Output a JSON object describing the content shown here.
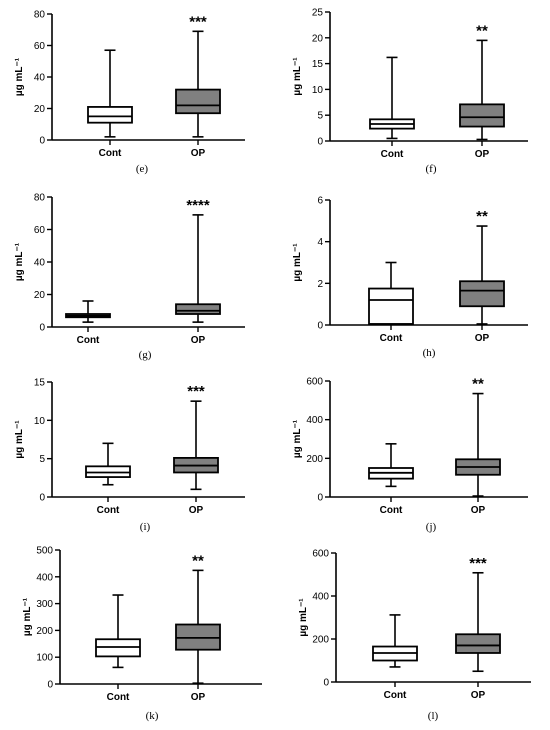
{
  "chart_data": [
    {
      "type": "box",
      "panel_label": "(e)",
      "categories": [
        "Cont",
        "OP"
      ],
      "ylabel": "µg mL⁻¹",
      "ylim": [
        0,
        80
      ],
      "yticks": [
        0,
        20,
        40,
        60,
        80
      ],
      "boxes": [
        {
          "category": "Cont",
          "min": 2,
          "q1": 11,
          "median": 15,
          "q3": 21,
          "max": 57,
          "fill": "#ffffff"
        },
        {
          "category": "OP",
          "min": 2,
          "q1": 17,
          "median": 22,
          "q3": 32,
          "max": 69,
          "fill": "#808080"
        }
      ],
      "significance": "***"
    },
    {
      "type": "box",
      "panel_label": "(f)",
      "categories": [
        "Cont",
        "OP"
      ],
      "ylabel": "µg mL⁻¹",
      "ylim": [
        0,
        25
      ],
      "yticks": [
        0,
        5,
        10,
        15,
        20,
        25
      ],
      "boxes": [
        {
          "category": "Cont",
          "min": 0.5,
          "q1": 2.4,
          "median": 3.3,
          "q3": 4.2,
          "max": 16.2,
          "fill": "#ffffff"
        },
        {
          "category": "OP",
          "min": 0.3,
          "q1": 2.8,
          "median": 4.6,
          "q3": 7.1,
          "max": 19.5,
          "fill": "#808080"
        }
      ],
      "significance": "**"
    },
    {
      "type": "box",
      "panel_label": "(g)",
      "categories": [
        "Cont",
        "OP"
      ],
      "ylabel": "µg mL⁻¹",
      "ylim": [
        0,
        80
      ],
      "yticks": [
        0,
        20,
        40,
        60,
        80
      ],
      "boxes": [
        {
          "category": "Cont",
          "min": 3,
          "q1": 6,
          "median": 7,
          "q3": 8,
          "max": 16,
          "fill": "#ffffff"
        },
        {
          "category": "OP",
          "min": 3,
          "q1": 8,
          "median": 10,
          "q3": 14,
          "max": 69,
          "fill": "#808080"
        }
      ],
      "significance": "****"
    },
    {
      "type": "box",
      "panel_label": "(h)",
      "categories": [
        "Cont",
        "OP"
      ],
      "ylabel": "µg mL⁻¹",
      "ylim": [
        0,
        6
      ],
      "yticks": [
        0,
        2,
        4,
        6
      ],
      "boxes": [
        {
          "category": "Cont",
          "min": 0.05,
          "q1": 0.05,
          "median": 1.2,
          "q3": 1.75,
          "max": 3.0,
          "fill": "#ffffff"
        },
        {
          "category": "OP",
          "min": 0.05,
          "q1": 0.9,
          "median": 1.65,
          "q3": 2.1,
          "max": 4.75,
          "fill": "#808080"
        }
      ],
      "significance": "**"
    },
    {
      "type": "box",
      "panel_label": "(i)",
      "categories": [
        "Cont",
        "OP"
      ],
      "ylabel": "µg mL⁻¹",
      "ylim": [
        0,
        15
      ],
      "yticks": [
        0,
        5,
        10,
        15
      ],
      "boxes": [
        {
          "category": "Cont",
          "min": 1.6,
          "q1": 2.6,
          "median": 3.2,
          "q3": 4.0,
          "max": 7.0,
          "fill": "#ffffff"
        },
        {
          "category": "OP",
          "min": 1.0,
          "q1": 3.2,
          "median": 4.1,
          "q3": 5.1,
          "max": 12.5,
          "fill": "#808080"
        }
      ],
      "significance": "***"
    },
    {
      "type": "box",
      "panel_label": "(j)",
      "categories": [
        "Cont",
        "OP"
      ],
      "ylabel": "µg mL⁻¹",
      "ylim": [
        0,
        600
      ],
      "yticks": [
        0,
        200,
        400,
        600
      ],
      "boxes": [
        {
          "category": "Cont",
          "min": 55,
          "q1": 95,
          "median": 125,
          "q3": 150,
          "max": 275,
          "fill": "#ffffff"
        },
        {
          "category": "OP",
          "min": 5,
          "q1": 115,
          "median": 155,
          "q3": 195,
          "max": 535,
          "fill": "#808080"
        }
      ],
      "significance": "**"
    },
    {
      "type": "box",
      "panel_label": "(k)",
      "categories": [
        "Cont",
        "OP"
      ],
      "ylabel": "µg mL⁻¹",
      "ylim": [
        0,
        500
      ],
      "yticks": [
        0,
        100,
        200,
        300,
        400,
        500
      ],
      "boxes": [
        {
          "category": "Cont",
          "min": 62,
          "q1": 103,
          "median": 138,
          "q3": 167,
          "max": 332,
          "fill": "#ffffff"
        },
        {
          "category": "OP",
          "min": 3,
          "q1": 128,
          "median": 172,
          "q3": 222,
          "max": 424,
          "fill": "#808080"
        }
      ],
      "significance": "**"
    },
    {
      "type": "box",
      "panel_label": "(l)",
      "categories": [
        "Cont",
        "OP"
      ],
      "ylabel": "µg mL⁻¹",
      "ylim": [
        0,
        600
      ],
      "yticks": [
        0,
        200,
        400,
        600
      ],
      "boxes": [
        {
          "category": "Cont",
          "min": 70,
          "q1": 100,
          "median": 135,
          "q3": 165,
          "max": 312,
          "fill": "#ffffff"
        },
        {
          "category": "OP",
          "min": 50,
          "q1": 135,
          "median": 170,
          "q3": 222,
          "max": 508,
          "fill": "#808080"
        }
      ],
      "significance": "***"
    }
  ]
}
